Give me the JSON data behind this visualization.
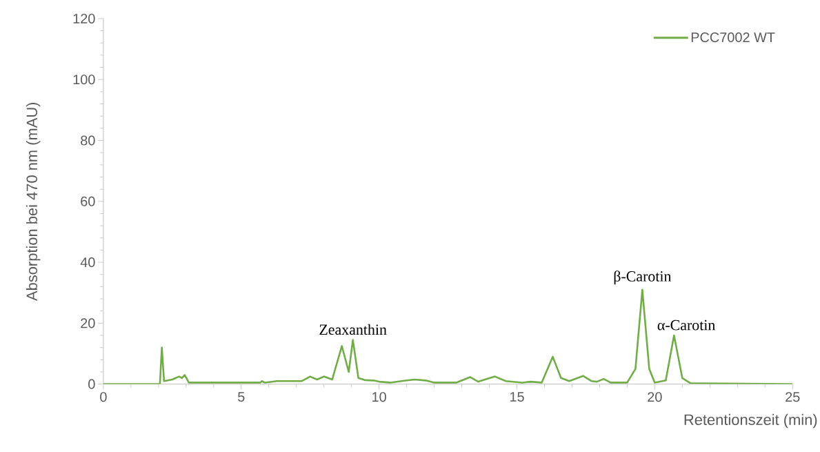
{
  "chart_data": {
    "type": "line",
    "xlabel": "Retentionszeit (min)",
    "ylabel": "Absorption bei 470 nm (mAU)",
    "xlim": [
      0,
      25
    ],
    "xticks": [
      0,
      5,
      10,
      15,
      20,
      25
    ],
    "ylim": [
      0,
      120
    ],
    "yticks": [
      0,
      20,
      40,
      60,
      80,
      100,
      120
    ],
    "grid": false,
    "legend": "top right",
    "marker": "none",
    "line_style": "solid",
    "x": [
      0,
      2.05,
      2.12,
      2.2,
      2.5,
      2.75,
      2.85,
      2.95,
      3.1,
      5.7,
      5.75,
      5.85,
      6.3,
      7.2,
      7.5,
      7.75,
      8.0,
      8.3,
      8.65,
      8.9,
      9.05,
      9.25,
      9.5,
      9.8,
      10.0,
      10.4,
      11.0,
      11.3,
      11.7,
      12.0,
      12.8,
      13.3,
      13.6,
      14.2,
      14.6,
      15.2,
      15.5,
      15.9,
      16.3,
      16.6,
      16.9,
      17.4,
      17.7,
      17.9,
      18.15,
      18.4,
      19.0,
      19.3,
      19.55,
      19.8,
      20.0,
      20.4,
      20.7,
      21.0,
      21.3,
      25
    ],
    "series": [
      {
        "name": "PCC7002 WT",
        "color": "#70ad47",
        "values": [
          0,
          0,
          12,
          1,
          1.5,
          2.5,
          2,
          3,
          0.5,
          0.5,
          1,
          0.5,
          1,
          1,
          2.5,
          1.5,
          2.5,
          1.5,
          12.5,
          4,
          14.5,
          2,
          1.3,
          1.2,
          0.8,
          0.5,
          1.2,
          1.5,
          1.2,
          0.5,
          0.5,
          2.3,
          0.8,
          2.5,
          1,
          0.5,
          0.8,
          0.5,
          9,
          2,
          1,
          2.7,
          1,
          0.8,
          1.7,
          0.5,
          0.5,
          5,
          31,
          5,
          0.5,
          1.2,
          16,
          2,
          0.3,
          0
        ]
      }
    ],
    "annotations": [
      {
        "text": "Zeaxanthin",
        "x": 9.05,
        "y": 14.5
      },
      {
        "text": "β-Carotin",
        "x": 19.55,
        "y": 31
      },
      {
        "text": "α-Carotin",
        "x": 20.7,
        "y": 16
      }
    ]
  }
}
